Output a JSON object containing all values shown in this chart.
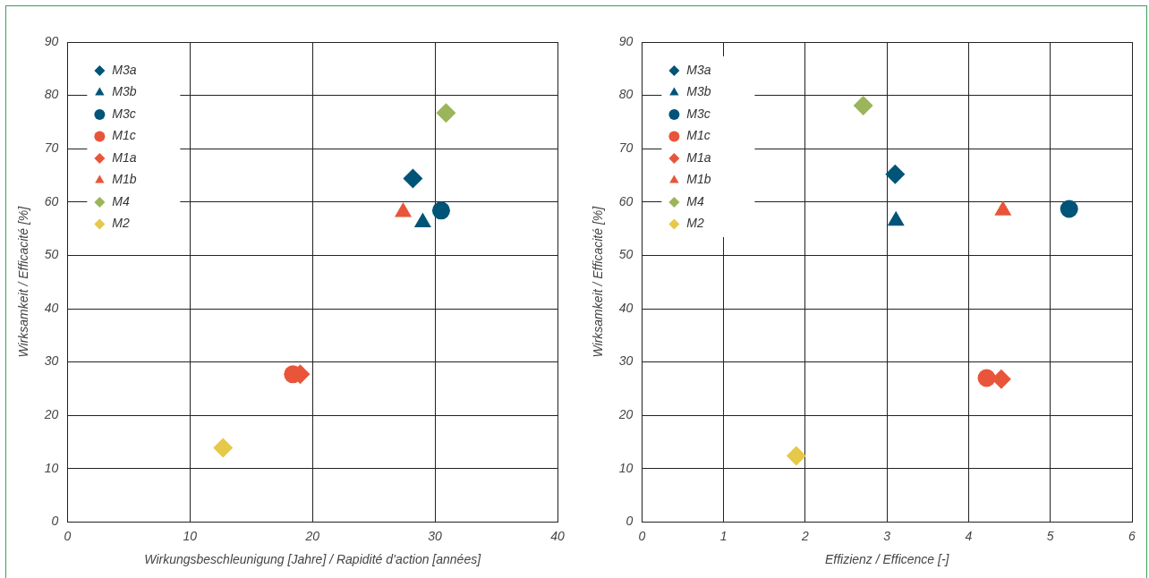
{
  "chart_data": [
    {
      "type": "scatter",
      "xlabel": "Wirkungsbeschleunigung [Jahre] / Rapidité d’action [années]",
      "ylabel": "Wirksamkeit / Efficacité [%]",
      "xlim": [
        0,
        40
      ],
      "xticks": [
        0,
        10,
        20,
        30,
        40
      ],
      "ylim": [
        0,
        90
      ],
      "yticks": [
        0,
        10,
        20,
        30,
        40,
        50,
        60,
        70,
        80,
        90
      ],
      "grid": true,
      "legend": "top left",
      "series": [
        {
          "name": "M3a",
          "color": "#005478",
          "marker": "diamond",
          "x": [
            28.2
          ],
          "values": [
            64.4
          ]
        },
        {
          "name": "M3b",
          "color": "#005478",
          "marker": "triangle",
          "x": [
            29.0
          ],
          "values": [
            56.2
          ]
        },
        {
          "name": "M3c",
          "color": "#005478",
          "marker": "circle",
          "x": [
            30.5
          ],
          "values": [
            58.4
          ]
        },
        {
          "name": "M1c",
          "color": "#e8553a",
          "marker": "circle",
          "x": [
            18.4
          ],
          "values": [
            27.7
          ]
        },
        {
          "name": "M1a",
          "color": "#e8553a",
          "marker": "diamond",
          "x": [
            19.0
          ],
          "values": [
            27.7
          ]
        },
        {
          "name": "M1b",
          "color": "#e8553a",
          "marker": "triangle",
          "x": [
            27.4
          ],
          "values": [
            58.1
          ]
        },
        {
          "name": "M4",
          "color": "#9ab55a",
          "marker": "diamond",
          "x": [
            30.9
          ],
          "values": [
            76.7
          ]
        },
        {
          "name": "M2",
          "color": "#e6c84a",
          "marker": "diamond",
          "x": [
            12.7
          ],
          "values": [
            13.9
          ]
        }
      ]
    },
    {
      "type": "scatter",
      "xlabel": "Effizienz / Efficence [-]",
      "ylabel": "Wirksamkeit / Efficacité [%]",
      "xlim": [
        0,
        6
      ],
      "xticks": [
        0,
        1,
        2,
        3,
        4,
        5,
        6
      ],
      "ylim": [
        0,
        90
      ],
      "yticks": [
        0,
        10,
        20,
        30,
        40,
        50,
        60,
        70,
        80,
        90
      ],
      "grid": true,
      "legend": "top left",
      "series": [
        {
          "name": "M3a",
          "color": "#005478",
          "marker": "diamond",
          "x": [
            3.1
          ],
          "values": [
            65.2
          ]
        },
        {
          "name": "M3b",
          "color": "#005478",
          "marker": "triangle",
          "x": [
            3.11
          ],
          "values": [
            56.5
          ]
        },
        {
          "name": "M3c",
          "color": "#005478",
          "marker": "circle",
          "x": [
            5.23
          ],
          "values": [
            58.7
          ]
        },
        {
          "name": "M1c",
          "color": "#e8553a",
          "marker": "circle",
          "x": [
            4.22
          ],
          "values": [
            27.0
          ]
        },
        {
          "name": "M1a",
          "color": "#e8553a",
          "marker": "diamond",
          "x": [
            4.4
          ],
          "values": [
            26.8
          ]
        },
        {
          "name": "M1b",
          "color": "#e8553a",
          "marker": "triangle",
          "x": [
            4.42
          ],
          "values": [
            58.4
          ]
        },
        {
          "name": "M4",
          "color": "#9ab55a",
          "marker": "diamond",
          "x": [
            2.71
          ],
          "values": [
            78.1
          ]
        },
        {
          "name": "M2",
          "color": "#e6c84a",
          "marker": "diamond",
          "x": [
            1.89
          ],
          "values": [
            12.4
          ]
        }
      ]
    }
  ]
}
